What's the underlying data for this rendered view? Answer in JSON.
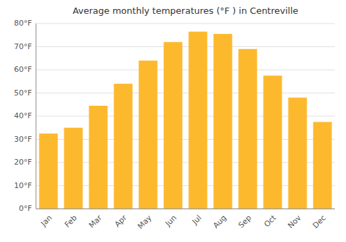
{
  "chart_data": {
    "type": "bar",
    "title": "Average monthly temperatures (°F ) in Centreville",
    "categories": [
      "Jan",
      "Feb",
      "Mar",
      "Apr",
      "May",
      "Jun",
      "Jul",
      "Aug",
      "Sep",
      "Oct",
      "Nov",
      "Dec"
    ],
    "values": [
      32.5,
      35.0,
      44.5,
      54.0,
      64.0,
      72.0,
      76.5,
      75.5,
      69.0,
      57.5,
      48.0,
      37.5
    ],
    "color": "#FDB92E",
    "ylim": [
      0,
      80
    ],
    "yticks": [
      {
        "value": 0,
        "label": "0°F"
      },
      {
        "value": 10,
        "label": "10°F"
      },
      {
        "value": 20,
        "label": "20°F"
      },
      {
        "value": 30,
        "label": "30°F"
      },
      {
        "value": 40,
        "label": "40°F"
      },
      {
        "value": 50,
        "label": "50°F"
      },
      {
        "value": 60,
        "label": "60°F"
      },
      {
        "value": 70,
        "label": "70°F"
      },
      {
        "value": 80,
        "label": "80°F"
      }
    ],
    "grid": true
  }
}
